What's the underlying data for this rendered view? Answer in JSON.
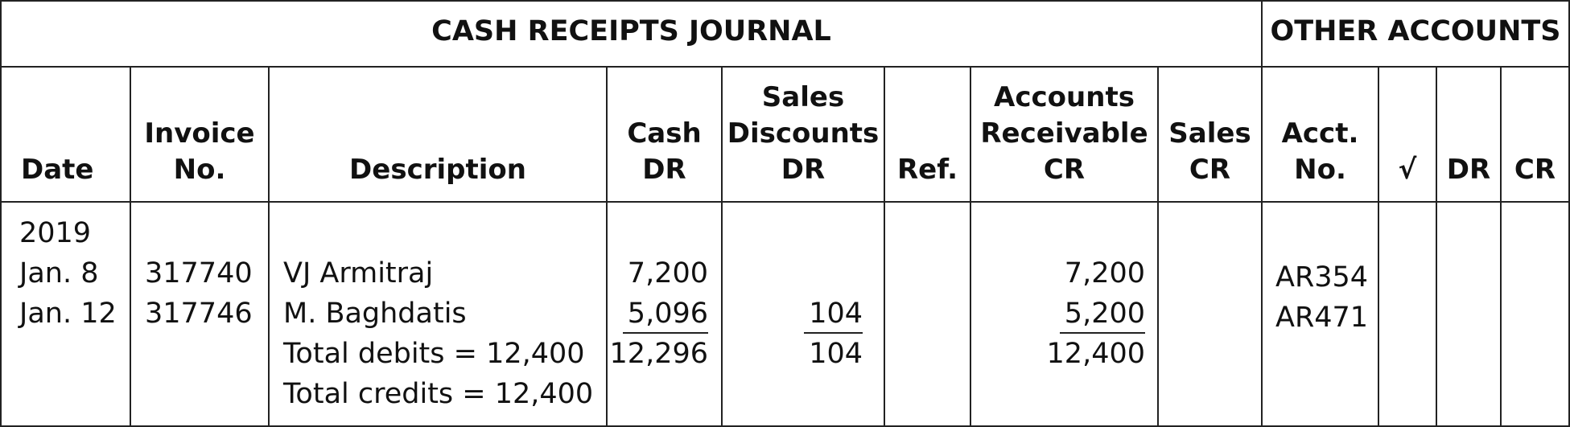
{
  "journal": {
    "title": "CASH RECEIPTS JOURNAL",
    "other_accounts_title": "OTHER ACCOUNTS",
    "headers": {
      "date": [
        "Date"
      ],
      "invoice_no": [
        "Invoice",
        "No."
      ],
      "description": [
        "Description"
      ],
      "cash_dr": [
        "Cash",
        "DR"
      ],
      "sales_discounts_dr": [
        "Sales",
        "Discounts",
        "DR"
      ],
      "ref": [
        "Ref."
      ],
      "accounts_receivable_cr": [
        "Accounts",
        "Receivable",
        "CR"
      ],
      "sales_cr": [
        "Sales",
        "CR"
      ],
      "acct_no": [
        "Acct.",
        "No."
      ],
      "check": [
        "√"
      ],
      "dr": [
        "DR"
      ],
      "cr": [
        "CR"
      ]
    },
    "year": "2019",
    "rows": [
      {
        "date": "Jan. 8",
        "invoice": "317740",
        "description": "VJ Armitraj",
        "cash_dr": "7,200",
        "sales_discounts_dr": "",
        "accounts_receivable_cr": "7,200",
        "acct_no": "AR354"
      },
      {
        "date": "Jan. 12",
        "invoice": "317746",
        "description": "M. Baghdatis",
        "cash_dr": "5,096",
        "sales_discounts_dr": "104",
        "accounts_receivable_cr": "5,200",
        "acct_no": "AR471"
      }
    ],
    "totals": {
      "debits_text": "Total debits = 12,400",
      "credits_text": "Total credits = 12,400",
      "cash_dr": "12,296",
      "sales_discounts_dr": "104",
      "accounts_receivable_cr": "12,400"
    }
  }
}
